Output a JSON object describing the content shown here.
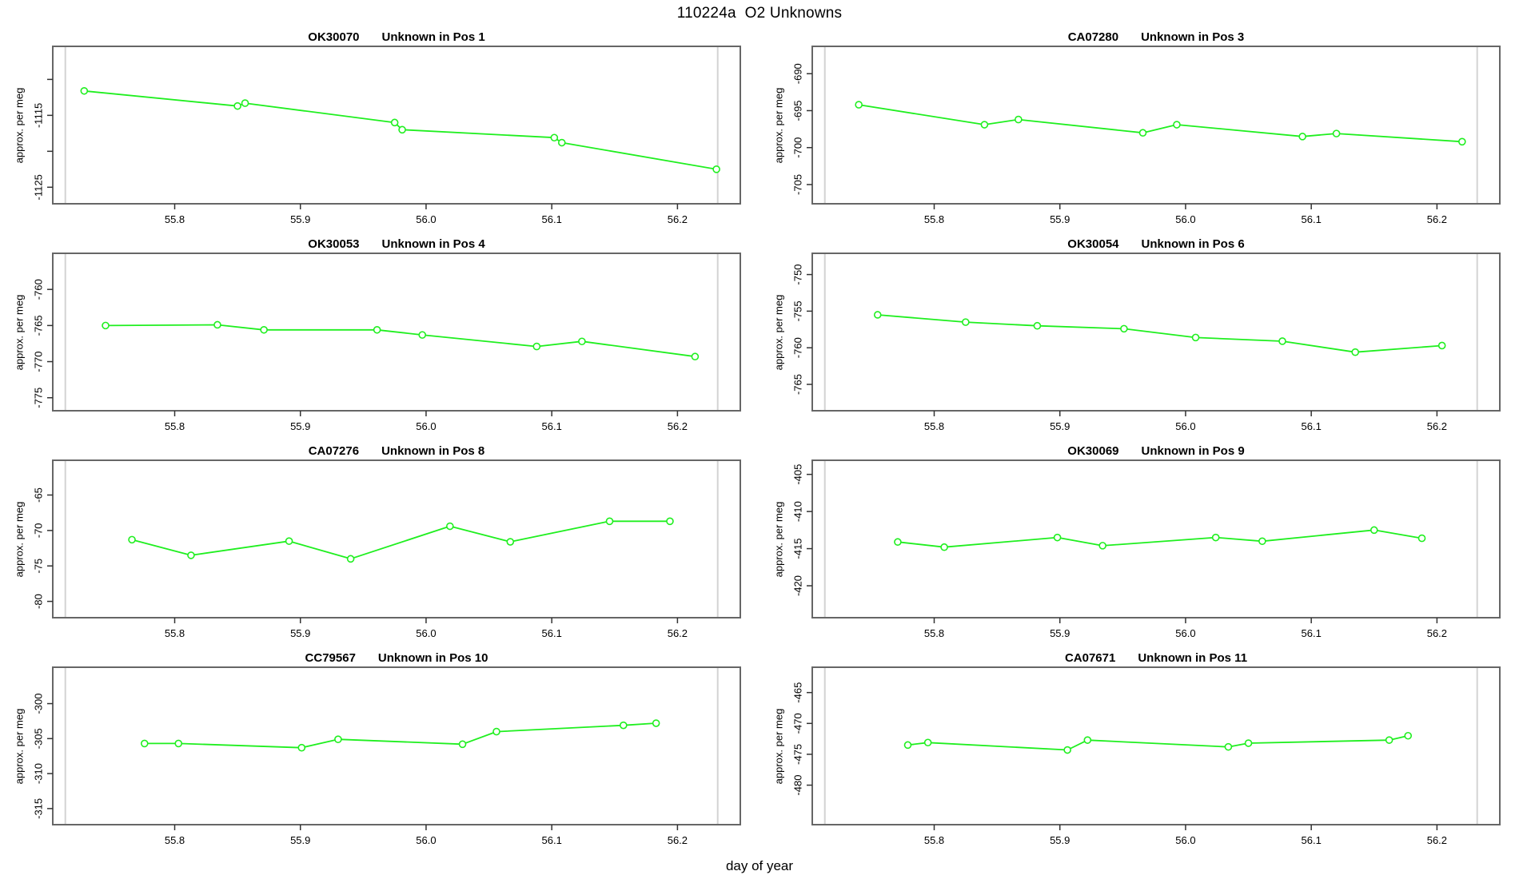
{
  "page_title": "110224a  O2 Unknowns",
  "xlabel": "day of year",
  "colors": {
    "series": "#1fef1f",
    "guide": "#d3d3d3",
    "box": "#666666",
    "tick": "#333333",
    "background": "#ffffff"
  },
  "chart_data": [
    {
      "type": "line",
      "id": "OK30070",
      "subtitle": "Unknown in Pos 1",
      "ylabel": "approx. per meg",
      "xlim": [
        55.703,
        56.25
      ],
      "ylim": [
        -1127.3,
        -1105.4
      ],
      "xticks": [
        55.8,
        55.9,
        56.0,
        56.1,
        56.2
      ],
      "xtick_labels": [
        "55.8",
        "55.9",
        "56.0",
        "56.1",
        "56.2"
      ],
      "yticks": [
        -1110,
        -1115,
        -1120,
        -1125
      ],
      "ytick_labels": [
        "",
        "-1115",
        "",
        "-1125"
      ],
      "guides": [
        55.713,
        56.232
      ],
      "x": [
        55.728,
        55.85,
        55.856,
        55.975,
        55.981,
        56.102,
        56.108,
        56.231
      ],
      "y": [
        -1111.6,
        -1113.7,
        -1113.3,
        -1116.0,
        -1117.0,
        -1118.1,
        -1118.8,
        -1122.5
      ]
    },
    {
      "type": "line",
      "id": "CA07280",
      "subtitle": "Unknown in Pos 3",
      "ylabel": "approx. per meg",
      "xlim": [
        55.703,
        56.25
      ],
      "ylim": [
        -707.6,
        -686.3
      ],
      "xticks": [
        55.8,
        55.9,
        56.0,
        56.1,
        56.2
      ],
      "xtick_labels": [
        "55.8",
        "55.9",
        "56.0",
        "56.1",
        "56.2"
      ],
      "yticks": [
        -690,
        -695,
        -700,
        -705
      ],
      "ytick_labels": [
        "-690",
        "-695",
        "-700",
        "-705"
      ],
      "guides": [
        55.713,
        56.232
      ],
      "x": [
        55.74,
        55.84,
        55.867,
        55.966,
        55.993,
        56.093,
        56.12,
        56.22
      ],
      "y": [
        -694.2,
        -696.9,
        -696.2,
        -698.0,
        -696.9,
        -698.5,
        -698.1,
        -699.2
      ]
    },
    {
      "type": "line",
      "id": "OK30053",
      "subtitle": "Unknown in Pos 4",
      "ylabel": "approx. per meg",
      "xlim": [
        55.703,
        56.25
      ],
      "ylim": [
        -776.8,
        -755.0
      ],
      "xticks": [
        55.8,
        55.9,
        56.0,
        56.1,
        56.2
      ],
      "xtick_labels": [
        "55.8",
        "55.9",
        "56.0",
        "56.1",
        "56.2"
      ],
      "yticks": [
        -760,
        -765,
        -770,
        -775
      ],
      "ytick_labels": [
        "-760",
        "-765",
        "-770",
        "-775"
      ],
      "guides": [
        55.713,
        56.232
      ],
      "x": [
        55.745,
        55.834,
        55.871,
        55.961,
        55.997,
        56.088,
        56.124,
        56.214
      ],
      "y": [
        -765.0,
        -764.9,
        -765.6,
        -765.6,
        -766.3,
        -767.9,
        -767.2,
        -769.3
      ]
    },
    {
      "type": "line",
      "id": "OK30054",
      "subtitle": "Unknown in Pos 6",
      "ylabel": "approx. per meg",
      "xlim": [
        55.703,
        56.25
      ],
      "ylim": [
        -768.6,
        -747.1
      ],
      "xticks": [
        55.8,
        55.9,
        56.0,
        56.1,
        56.2
      ],
      "xtick_labels": [
        "55.8",
        "55.9",
        "56.0",
        "56.1",
        "56.2"
      ],
      "yticks": [
        -750,
        -755,
        -760,
        -765
      ],
      "ytick_labels": [
        "-750",
        "-755",
        "-760",
        "-765"
      ],
      "guides": [
        55.713,
        56.232
      ],
      "x": [
        55.755,
        55.825,
        55.882,
        55.951,
        56.008,
        56.077,
        56.135,
        56.204
      ],
      "y": [
        -755.5,
        -756.5,
        -757.0,
        -757.4,
        -758.6,
        -759.1,
        -760.6,
        -759.7
      ]
    },
    {
      "type": "line",
      "id": "CA07276",
      "subtitle": "Unknown in Pos 8",
      "ylabel": "approx. per meg",
      "xlim": [
        55.703,
        56.25
      ],
      "ylim": [
        -82.3,
        -60.1
      ],
      "xticks": [
        55.8,
        55.9,
        56.0,
        56.1,
        56.2
      ],
      "xtick_labels": [
        "55.8",
        "55.9",
        "56.0",
        "56.1",
        "56.2"
      ],
      "yticks": [
        -65,
        -70,
        -75,
        -80
      ],
      "ytick_labels": [
        "-65",
        "-70",
        "-75",
        "-80"
      ],
      "guides": [
        55.713,
        56.232
      ],
      "x": [
        55.766,
        55.813,
        55.891,
        55.94,
        56.019,
        56.067,
        56.146,
        56.194
      ],
      "y": [
        -71.3,
        -73.5,
        -71.5,
        -74.0,
        -69.4,
        -71.6,
        -68.7,
        -68.7
      ]
    },
    {
      "type": "line",
      "id": "OK30069",
      "subtitle": "Unknown in Pos 9",
      "ylabel": "approx. per meg",
      "xlim": [
        55.703,
        56.25
      ],
      "ylim": [
        -424.3,
        -403.1
      ],
      "xticks": [
        55.8,
        55.9,
        56.0,
        56.1,
        56.2
      ],
      "xtick_labels": [
        "55.8",
        "55.9",
        "56.0",
        "56.1",
        "56.2"
      ],
      "yticks": [
        -405,
        -410,
        -415,
        -420
      ],
      "ytick_labels": [
        "-405",
        "-410",
        "-415",
        "-420"
      ],
      "guides": [
        55.713,
        56.232
      ],
      "x": [
        55.771,
        55.808,
        55.898,
        55.934,
        56.024,
        56.061,
        56.15,
        56.188
      ],
      "y": [
        -414.1,
        -414.8,
        -413.5,
        -414.6,
        -413.5,
        -414.0,
        -412.5,
        -413.6
      ]
    },
    {
      "type": "line",
      "id": "CC79567",
      "subtitle": "Unknown in Pos 10",
      "ylabel": "approx. per meg",
      "xlim": [
        55.703,
        56.25
      ],
      "ylim": [
        -317.3,
        -294.8
      ],
      "xticks": [
        55.8,
        55.9,
        56.0,
        56.1,
        56.2
      ],
      "xtick_labels": [
        "55.8",
        "55.9",
        "56.0",
        "56.1",
        "56.2"
      ],
      "yticks": [
        -300,
        -305,
        -310,
        -315
      ],
      "ytick_labels": [
        "-300",
        "-305",
        "-310",
        "-315"
      ],
      "guides": [
        55.713,
        56.232
      ],
      "x": [
        55.776,
        55.803,
        55.901,
        55.93,
        56.029,
        56.056,
        56.157,
        56.183
      ],
      "y": [
        -305.7,
        -305.7,
        -306.3,
        -305.1,
        -305.8,
        -304.0,
        -303.1,
        -302.8
      ]
    },
    {
      "type": "line",
      "id": "CA07671",
      "subtitle": "Unknown in Pos 11",
      "ylabel": "approx. per meg",
      "xlim": [
        55.703,
        56.25
      ],
      "ylim": [
        -486.4,
        -460.9
      ],
      "xticks": [
        55.8,
        55.9,
        56.0,
        56.1,
        56.2
      ],
      "xtick_labels": [
        "55.8",
        "55.9",
        "56.0",
        "56.1",
        "56.2"
      ],
      "yticks": [
        -465,
        -470,
        -475,
        -480
      ],
      "ytick_labels": [
        "-465",
        "-470",
        "-475",
        "-480"
      ],
      "guides": [
        55.713,
        56.232
      ],
      "x": [
        55.779,
        55.795,
        55.906,
        55.922,
        56.034,
        56.05,
        56.162,
        56.177
      ],
      "y": [
        -473.5,
        -473.1,
        -474.3,
        -472.7,
        -473.8,
        -473.2,
        -472.7,
        -472.0
      ]
    }
  ]
}
